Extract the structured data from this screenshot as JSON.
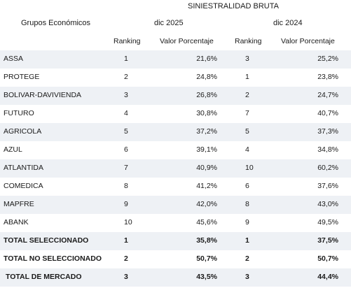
{
  "header": {
    "title": "SINIESTRALIDAD BRUTA",
    "group_label": "Grupos Económicos",
    "period_1": "dic 2025",
    "period_2": "dic 2024",
    "rank_label": "Ranking",
    "value_label": "Valor Porcentaje"
  },
  "rows": [
    {
      "name": "ASSA",
      "rank_2025": "1",
      "value_2025": "21,6%",
      "rank_2024": "3",
      "value_2024": "25,2%"
    },
    {
      "name": "PROTEGE",
      "rank_2025": "2",
      "value_2025": "24,8%",
      "rank_2024": "1",
      "value_2024": "23,8%"
    },
    {
      "name": "BOLIVAR-DAVIVIENDA",
      "rank_2025": "3",
      "value_2025": "26,8%",
      "rank_2024": "2",
      "value_2024": "24,7%"
    },
    {
      "name": "FUTURO",
      "rank_2025": "4",
      "value_2025": "30,8%",
      "rank_2024": "7",
      "value_2024": "40,7%"
    },
    {
      "name": "AGRICOLA",
      "rank_2025": "5",
      "value_2025": "37,2%",
      "rank_2024": "5",
      "value_2024": "37,3%"
    },
    {
      "name": "AZUL",
      "rank_2025": "6",
      "value_2025": "39,1%",
      "rank_2024": "4",
      "value_2024": "34,8%"
    },
    {
      "name": "ATLANTIDA",
      "rank_2025": "7",
      "value_2025": "40,9%",
      "rank_2024": "10",
      "value_2024": "60,2%"
    },
    {
      "name": "COMEDICA",
      "rank_2025": "8",
      "value_2025": "41,2%",
      "rank_2024": "6",
      "value_2024": "37,6%"
    },
    {
      "name": "MAPFRE",
      "rank_2025": "9",
      "value_2025": "42,0%",
      "rank_2024": "8",
      "value_2024": "43,0%"
    },
    {
      "name": "ABANK",
      "rank_2025": "10",
      "value_2025": "45,6%",
      "rank_2024": "9",
      "value_2024": "49,5%"
    },
    {
      "name": "TOTAL SELECCIONADO",
      "rank_2025": "1",
      "value_2025": "35,8%",
      "rank_2024": "1",
      "value_2024": "37,5%"
    },
    {
      "name": "TOTAL NO SELECCIONADO",
      "rank_2025": "2",
      "value_2025": "50,7%",
      "rank_2024": "2",
      "value_2024": "50,7%"
    },
    {
      "name": "TOTAL DE MERCADO",
      "rank_2025": "3",
      "value_2025": "43,5%",
      "rank_2024": "3",
      "value_2024": "44,4%"
    }
  ]
}
